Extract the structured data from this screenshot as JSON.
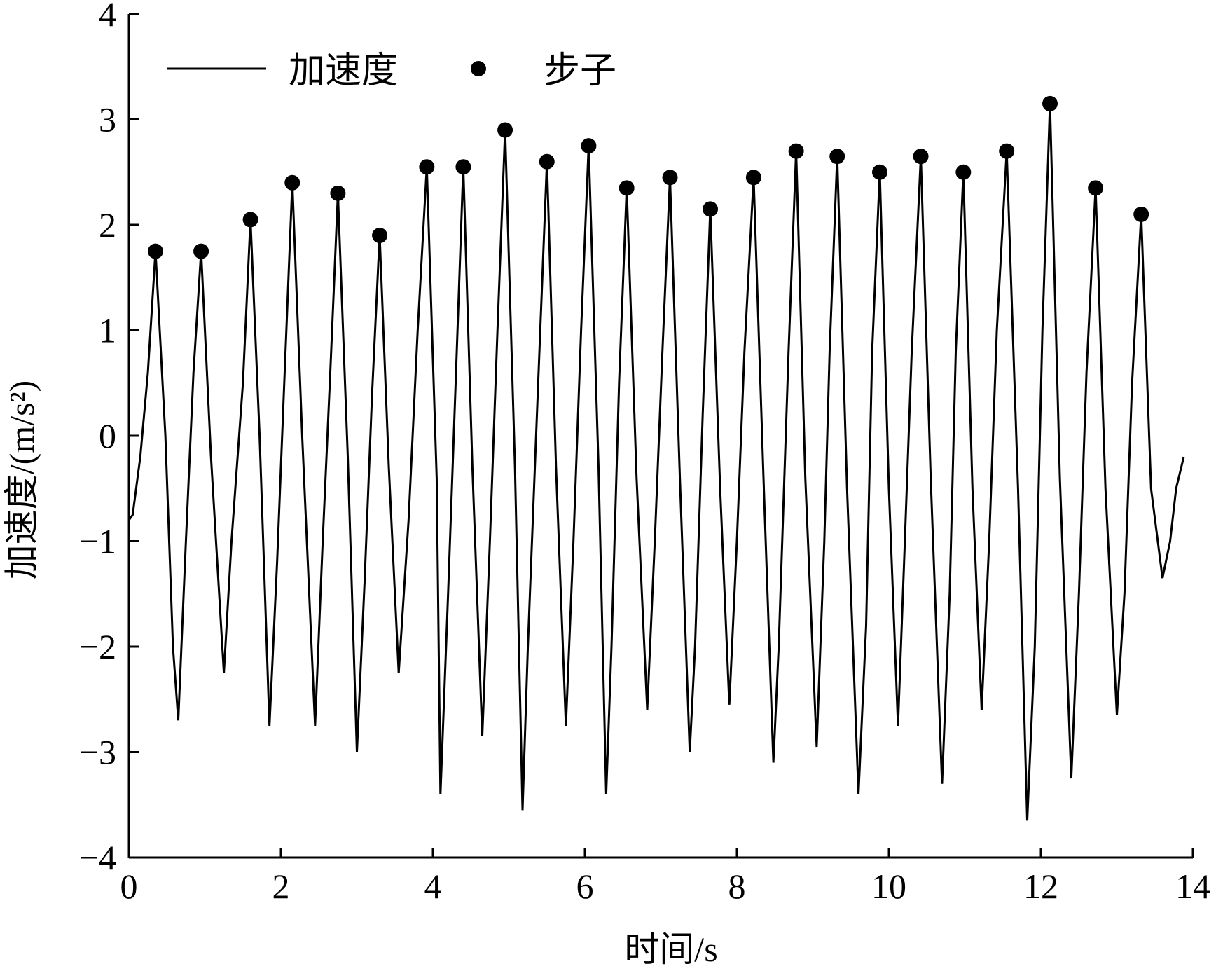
{
  "chart_data": {
    "type": "line",
    "xlabel": "时间/s",
    "ylabel": "加速度/(m/s²)",
    "xlim": [
      0,
      14
    ],
    "ylim": [
      -4,
      4
    ],
    "xticks": [
      "0",
      "2",
      "4",
      "6",
      "8",
      "10",
      "12",
      "14"
    ],
    "yticks": [
      "4",
      "3",
      "2",
      "1",
      "0",
      "−1",
      "−2",
      "−3",
      "−4"
    ],
    "grid": false,
    "legend_position": "top-left",
    "series": [
      {
        "name": "加速度",
        "style": "line",
        "color": "#000000",
        "x": [
          0.0,
          0.05,
          0.15,
          0.25,
          0.35,
          0.48,
          0.58,
          0.65,
          0.75,
          0.85,
          0.95,
          1.08,
          1.25,
          1.35,
          1.5,
          1.6,
          1.72,
          1.85,
          1.95,
          2.05,
          2.15,
          2.28,
          2.45,
          2.55,
          2.65,
          2.75,
          2.88,
          3.0,
          3.1,
          3.2,
          3.3,
          3.42,
          3.55,
          3.68,
          3.8,
          3.92,
          4.05,
          4.1,
          4.2,
          4.3,
          4.4,
          4.52,
          4.65,
          4.75,
          4.85,
          4.95,
          5.08,
          5.18,
          5.25,
          5.38,
          5.5,
          5.62,
          5.75,
          5.85,
          5.95,
          6.05,
          6.18,
          6.28,
          6.35,
          6.45,
          6.55,
          6.68,
          6.82,
          6.92,
          7.02,
          7.12,
          7.25,
          7.38,
          7.45,
          7.55,
          7.65,
          7.78,
          7.9,
          8.0,
          8.1,
          8.22,
          8.35,
          8.48,
          8.55,
          8.68,
          8.78,
          8.9,
          9.05,
          9.15,
          9.22,
          9.32,
          9.45,
          9.6,
          9.7,
          9.78,
          9.88,
          10.0,
          10.12,
          10.2,
          10.3,
          10.42,
          10.55,
          10.7,
          10.8,
          10.88,
          10.98,
          11.1,
          11.22,
          11.32,
          11.42,
          11.55,
          11.7,
          11.82,
          11.92,
          12.02,
          12.12,
          12.25,
          12.4,
          12.5,
          12.6,
          12.72,
          12.85,
          13.0,
          13.1,
          13.2,
          13.32,
          13.45,
          13.6,
          13.7,
          13.78,
          13.88
        ],
        "y": [
          -0.8,
          -0.75,
          -0.2,
          0.6,
          1.75,
          0.0,
          -2.0,
          -2.7,
          -1.0,
          0.6,
          1.75,
          -0.2,
          -2.25,
          -1.0,
          0.5,
          2.05,
          0.0,
          -2.75,
          -1.2,
          0.6,
          2.4,
          0.0,
          -2.75,
          -1.0,
          0.6,
          2.3,
          -0.2,
          -3.0,
          -1.4,
          0.4,
          1.9,
          -0.3,
          -2.25,
          -0.8,
          1.0,
          2.55,
          -0.4,
          -3.4,
          -1.5,
          0.5,
          2.55,
          -0.3,
          -2.85,
          -1.0,
          1.0,
          2.9,
          -0.3,
          -3.55,
          -2.0,
          0.4,
          2.6,
          -0.3,
          -2.75,
          -1.0,
          1.0,
          2.75,
          -0.3,
          -3.4,
          -2.0,
          0.5,
          2.35,
          -0.4,
          -2.6,
          -1.0,
          0.8,
          2.45,
          -0.4,
          -3.0,
          -2.0,
          0.2,
          2.15,
          -0.5,
          -2.55,
          -1.0,
          0.8,
          2.45,
          -0.4,
          -3.1,
          -2.0,
          0.8,
          2.7,
          -0.4,
          -2.95,
          -1.0,
          0.8,
          2.65,
          -0.5,
          -3.4,
          -1.8,
          0.8,
          2.5,
          -0.5,
          -2.75,
          -1.2,
          0.8,
          2.65,
          -0.4,
          -3.3,
          -1.5,
          0.8,
          2.5,
          -0.5,
          -2.6,
          -1.0,
          1.0,
          2.7,
          -0.5,
          -3.65,
          -2.0,
          1.0,
          3.15,
          -0.4,
          -3.25,
          -1.5,
          0.6,
          2.35,
          -0.5,
          -2.65,
          -1.5,
          0.5,
          2.1,
          -0.5,
          -1.35,
          -1.0,
          -0.5,
          -0.2
        ]
      },
      {
        "name": "步子",
        "style": "points",
        "color": "#000000",
        "x": [
          0.35,
          0.95,
          1.6,
          2.15,
          2.75,
          3.3,
          3.92,
          4.4,
          4.95,
          5.5,
          6.05,
          6.55,
          7.12,
          7.65,
          8.22,
          8.78,
          9.32,
          9.88,
          10.42,
          10.98,
          11.55,
          12.12,
          12.72,
          13.32
        ],
        "y": [
          1.75,
          1.75,
          2.05,
          2.4,
          2.3,
          1.9,
          2.55,
          2.55,
          2.9,
          2.6,
          2.75,
          2.35,
          2.45,
          2.15,
          2.45,
          2.7,
          2.65,
          2.5,
          2.65,
          2.5,
          2.7,
          3.15,
          2.35,
          2.1
        ]
      }
    ]
  }
}
